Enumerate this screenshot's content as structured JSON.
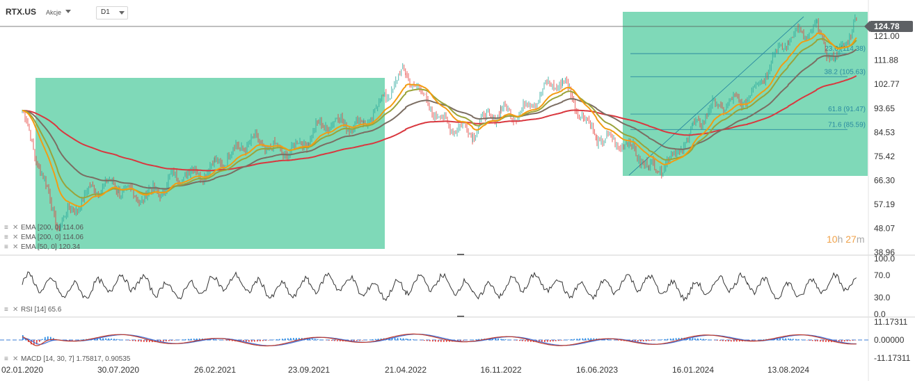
{
  "header": {
    "symbol": "RTX.US",
    "market": "Akcje",
    "timeframe": "D1"
  },
  "last_price": "124.78",
  "timer": {
    "hours": "10",
    "h_unit": "h",
    "minutes": "27",
    "m_unit": "m"
  },
  "legend": {
    "ema1": "EMA [200,  0]  114.06",
    "ema2": "EMA [200,  0]  114.06",
    "ema3": "EMA [50,  0]  120.34",
    "rsi": "RSI  [14]  65.6",
    "macd": "MACD [14,  30,  7]  1.75817,  0.90535"
  },
  "colors": {
    "zone": "#7fd9b8",
    "up_candle": "#26a69a",
    "down_candle": "#e53935",
    "ema200": "#7b6d62",
    "ema50": "#9aa33a",
    "ema_slow": "#d9373e",
    "ema_fast": "#f39c12",
    "fib_line": "#2a8aa0",
    "macd_line": "#c0392b",
    "signal_line": "#3d6fd8"
  },
  "chart_data": {
    "type": "line",
    "title": "RTX.US",
    "price_axis": {
      "ticks": [
        "121.00",
        "111.88",
        "102.77",
        "93.65",
        "84.53",
        "75.42",
        "66.30",
        "57.19",
        "48.07",
        "38.96"
      ],
      "ylim": [
        38.96,
        130
      ]
    },
    "x_axis": {
      "ticks": [
        "02.01.2020",
        "30.07.2020",
        "26.02.2021",
        "23.09.2021",
        "21.04.2022",
        "16.11.2022",
        "16.06.2023",
        "16.01.2024",
        "13.08.2024"
      ]
    },
    "price_series_approx": {
      "x": [
        "02.01.2020",
        "20.03.2020",
        "30.07.2020",
        "01.11.2020",
        "26.02.2021",
        "23.09.2021",
        "20.01.2022",
        "21.04.2022",
        "15.09.2022",
        "16.11.2022",
        "01.04.2023",
        "16.06.2023",
        "10.10.2023",
        "16.01.2024",
        "15.05.2024",
        "13.08.2024",
        "15.10.2024",
        "25.11.2024",
        "10.01.2025"
      ],
      "y": [
        89,
        53,
        65,
        61,
        75,
        82,
        91,
        104,
        82,
        93,
        101,
        86,
        70,
        85,
        101,
        117,
        126,
        113,
        125
      ]
    },
    "fib_levels": [
      {
        "label": "23.6 (114.38)",
        "value": 114.38
      },
      {
        "label": "38.2 (105.63)",
        "value": 105.63
      },
      {
        "label": "61.8 (91.47)",
        "value": 91.47
      },
      {
        "label": "71.6 (85.59)",
        "value": 85.59
      }
    ],
    "zones": [
      {
        "from": "02.01.2020",
        "to": "21.04.2022"
      },
      {
        "from": "16.06.2023",
        "to": "10.01.2025"
      }
    ],
    "rsi": {
      "ticks": [
        "100.0",
        "70.0",
        "30.0",
        "0.0"
      ],
      "last": 65.6
    },
    "macd": {
      "ticks": [
        "11.17311",
        "0.00000",
        "-11.17311"
      ],
      "last": 1.75817,
      "signal": 0.90535
    }
  }
}
